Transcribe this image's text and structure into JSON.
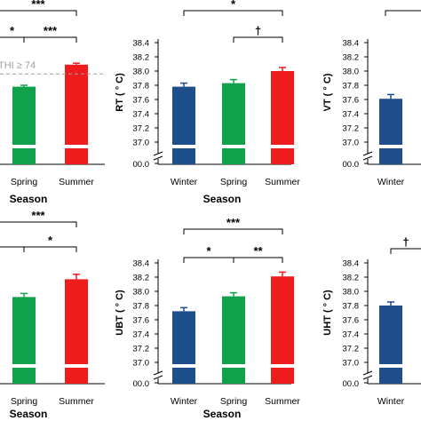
{
  "figure": {
    "threshold_label": "THI ≥ 74",
    "colors": {
      "winter": "#1f4e8c",
      "spring": "#12a14b",
      "summer": "#ee1c1c",
      "threshold_line": "#a0a0a0"
    }
  },
  "chart_data": [
    {
      "id": "top-left",
      "type": "bar",
      "categories": [
        "Spring",
        "Summer"
      ],
      "values": [
        37.78,
        38.09
      ],
      "errors": [
        0.02,
        0.02
      ],
      "xlabel": "Season",
      "ylabel": "",
      "ylim": [
        36.8,
        38.4
      ],
      "threshold": 37.96,
      "brackets": [
        {
          "from": "cut",
          "to": "Summer",
          "label": "***",
          "level": 0
        },
        {
          "from": "cut",
          "to": "Spring",
          "label": "*",
          "level": 1
        },
        {
          "from": "Spring",
          "to": "Summer",
          "label": "***",
          "level": 1
        }
      ]
    },
    {
      "id": "top-middle",
      "type": "bar",
      "categories": [
        "Winter",
        "Spring",
        "Summer"
      ],
      "values": [
        37.78,
        37.83,
        38.0
      ],
      "errors": [
        0.05,
        0.05,
        0.05
      ],
      "xlabel": "Season",
      "ylabel": "RT ( ° C)",
      "ylim": [
        36.8,
        38.4
      ],
      "yticks": [
        "38.4",
        "38.2",
        "38.0",
        "37.8",
        "37.6",
        "37.4",
        "37.2",
        "37.0"
      ],
      "ybreak_label": "00.0",
      "brackets": [
        {
          "from": "Winter",
          "to": "Summer",
          "label": "*",
          "level": 0
        },
        {
          "from": "Spring",
          "to": "Summer",
          "label": "†",
          "level": 1
        }
      ]
    },
    {
      "id": "top-right",
      "type": "bar",
      "categories": [
        "Winter"
      ],
      "values": [
        37.61
      ],
      "errors": [
        0.06
      ],
      "xlabel": "",
      "ylabel": "VT ( ° C)",
      "ylim": [
        36.8,
        38.4
      ],
      "yticks": [
        "38.4",
        "38.2",
        "38.0",
        "37.8",
        "37.6",
        "37.4",
        "37.2",
        "37.0"
      ],
      "ybreak_label": "00.0",
      "brackets": [
        {
          "from": "cut",
          "to": "cut",
          "label": "",
          "level": 0
        }
      ]
    },
    {
      "id": "bottom-left",
      "type": "bar",
      "categories": [
        "Spring",
        "Summer"
      ],
      "values": [
        37.92,
        38.17
      ],
      "errors": [
        0.05,
        0.07
      ],
      "xlabel": "Season",
      "ylabel": "",
      "ylim": [
        36.8,
        38.4
      ],
      "brackets": [
        {
          "from": "cut",
          "to": "Summer",
          "label": "***",
          "level": 0
        },
        {
          "from": "cut",
          "to": "Spring",
          "label": "",
          "level": 1
        },
        {
          "from": "Spring",
          "to": "Summer",
          "label": "*",
          "level": 1
        }
      ]
    },
    {
      "id": "bottom-middle",
      "type": "bar",
      "categories": [
        "Winter",
        "Spring",
        "Summer"
      ],
      "values": [
        37.72,
        37.93,
        38.21
      ],
      "errors": [
        0.05,
        0.05,
        0.06
      ],
      "xlabel": "Season",
      "ylabel": "UBT ( ° C)",
      "ylim": [
        36.8,
        38.4
      ],
      "yticks": [
        "38.4",
        "38.2",
        "38.0",
        "37.8",
        "37.6",
        "37.4",
        "37.2",
        "37.0"
      ],
      "ybreak_label": "00.0",
      "brackets": [
        {
          "from": "Winter",
          "to": "Summer",
          "label": "***",
          "level": 0
        },
        {
          "from": "Winter",
          "to": "Spring",
          "label": "*",
          "level": 1
        },
        {
          "from": "Spring",
          "to": "Summer",
          "label": "**",
          "level": 1
        }
      ]
    },
    {
      "id": "bottom-right",
      "type": "bar",
      "categories": [
        "Winter"
      ],
      "values": [
        37.8
      ],
      "errors": [
        0.05
      ],
      "xlabel": "",
      "ylabel": "UHT ( ° C)",
      "ylim": [
        36.8,
        38.4
      ],
      "yticks": [
        "38.4",
        "38.2",
        "38.0",
        "37.8",
        "37.6",
        "37.4",
        "37.2",
        "37.0"
      ],
      "ybreak_label": "00.0",
      "brackets": [
        {
          "from": "Winter",
          "to": "cut",
          "label": "†",
          "level": 1
        }
      ]
    }
  ]
}
